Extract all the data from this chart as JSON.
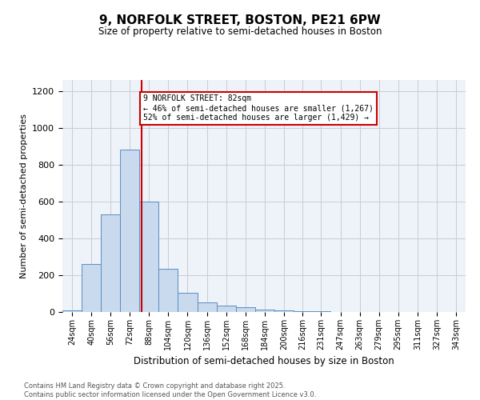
{
  "title": "9, NORFOLK STREET, BOSTON, PE21 6PW",
  "subtitle": "Size of property relative to semi-detached houses in Boston",
  "xlabel": "Distribution of semi-detached houses by size in Boston",
  "ylabel": "Number of semi-detached properties",
  "bin_edges": [
    16,
    32,
    48,
    64,
    80,
    96,
    112,
    128,
    144,
    160,
    176,
    192,
    208,
    223,
    239,
    255,
    271,
    287,
    303,
    319,
    335,
    351
  ],
  "bin_labels": [
    "24sqm",
    "40sqm",
    "56sqm",
    "72sqm",
    "88sqm",
    "104sqm",
    "120sqm",
    "136sqm",
    "152sqm",
    "168sqm",
    "184sqm",
    "200sqm",
    "216sqm",
    "231sqm",
    "247sqm",
    "263sqm",
    "279sqm",
    "295sqm",
    "311sqm",
    "327sqm",
    "343sqm"
  ],
  "counts": [
    10,
    260,
    530,
    880,
    600,
    235,
    105,
    50,
    35,
    25,
    15,
    10,
    5,
    3,
    2,
    1,
    0,
    0,
    0,
    0,
    0
  ],
  "property_size": 82,
  "bar_facecolor": "#c9d9ee",
  "bar_edgecolor": "#5a8fc0",
  "vline_color": "#cc0000",
  "annotation_line1": "9 NORFOLK STREET: 82sqm",
  "annotation_line2": "← 46% of semi-detached houses are smaller (1,267)",
  "annotation_line3": "52% of semi-detached houses are larger (1,429) →",
  "annotation_box_edgecolor": "#cc0000",
  "grid_color": "#cccccc",
  "background_color": "#eef2f9",
  "footer_text": "Contains HM Land Registry data © Crown copyright and database right 2025.\nContains public sector information licensed under the Open Government Licence v3.0.",
  "ylim": [
    0,
    1260
  ],
  "yticks": [
    0,
    200,
    400,
    600,
    800,
    1000,
    1200
  ]
}
